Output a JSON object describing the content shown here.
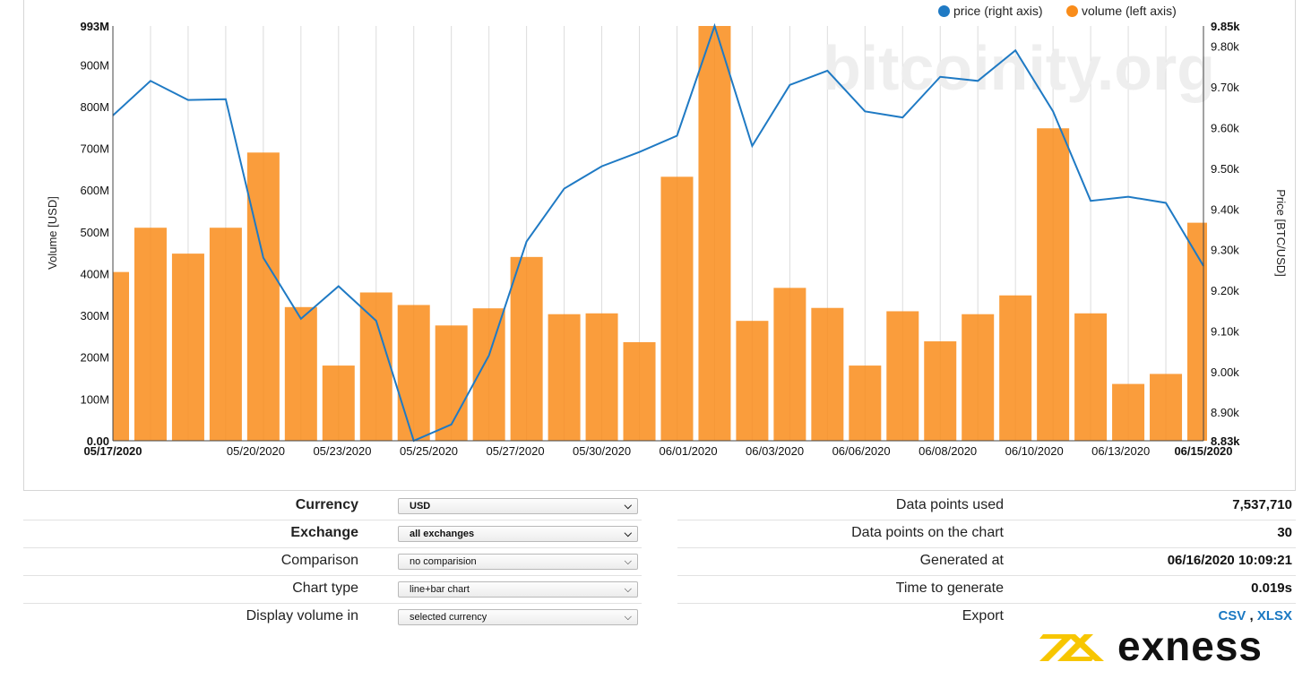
{
  "watermark": "bitcoinity.org",
  "legend": {
    "price": {
      "label": "price (right axis)",
      "color": "#1f7ac4"
    },
    "volume": {
      "label": "volume (left axis)",
      "color": "#f98c1a"
    }
  },
  "chart_data": {
    "type": "line+bar",
    "ylabel_left": "Volume [USD]",
    "ylabel_right": "Price [BTC/USD]",
    "left_ticks": [
      "0.00",
      "100M",
      "200M",
      "300M",
      "400M",
      "500M",
      "600M",
      "700M",
      "800M",
      "900M",
      "993M"
    ],
    "left_tick_values": [
      0,
      100,
      200,
      300,
      400,
      500,
      600,
      700,
      800,
      900,
      993
    ],
    "ylim_left": [
      0,
      993
    ],
    "right_ticks": [
      "8.83k",
      "8.90k",
      "9.00k",
      "9.10k",
      "9.20k",
      "9.30k",
      "9.40k",
      "9.50k",
      "9.60k",
      "9.70k",
      "9.80k",
      "9.85k"
    ],
    "right_tick_values": [
      8.83,
      8.9,
      9.0,
      9.1,
      9.2,
      9.3,
      9.4,
      9.5,
      9.6,
      9.7,
      9.8,
      9.85
    ],
    "ylim_right": [
      8.83,
      9.85
    ],
    "x_ticks": [
      {
        "index": 0,
        "label": "05/17/2020",
        "bold": true
      },
      {
        "index": 3.8,
        "label": "05/20/2020",
        "bold": false
      },
      {
        "index": 6.1,
        "label": "05/23/2020",
        "bold": false
      },
      {
        "index": 8.4,
        "label": "05/25/2020",
        "bold": false
      },
      {
        "index": 10.7,
        "label": "05/27/2020",
        "bold": false
      },
      {
        "index": 13.0,
        "label": "05/30/2020",
        "bold": false
      },
      {
        "index": 15.3,
        "label": "06/01/2020",
        "bold": false
      },
      {
        "index": 17.6,
        "label": "06/03/2020",
        "bold": false
      },
      {
        "index": 19.9,
        "label": "06/06/2020",
        "bold": false
      },
      {
        "index": 22.2,
        "label": "06/08/2020",
        "bold": false
      },
      {
        "index": 24.5,
        "label": "06/10/2020",
        "bold": false
      },
      {
        "index": 26.8,
        "label": "06/13/2020",
        "bold": false
      },
      {
        "index": 29,
        "label": "06/15/2020",
        "bold": true
      }
    ],
    "series": [
      {
        "name": "volume (left axis)",
        "type": "bar",
        "unit": "M USD",
        "values": [
          404,
          510,
          448,
          510,
          690,
          320,
          180,
          355,
          325,
          276,
          317,
          440,
          303,
          305,
          236,
          632,
          993,
          287,
          366,
          318,
          180,
          310,
          238,
          303,
          348,
          748,
          305,
          136,
          160,
          522
        ]
      },
      {
        "name": "price (right axis)",
        "type": "line",
        "unit": "k USD",
        "values": [
          9.63,
          9.715,
          9.668,
          9.67,
          9.28,
          9.13,
          9.21,
          9.125,
          8.83,
          8.87,
          9.04,
          9.32,
          9.45,
          9.505,
          9.54,
          9.58,
          9.85,
          9.555,
          9.705,
          9.74,
          9.64,
          9.625,
          9.725,
          9.715,
          9.79,
          9.64,
          9.42,
          9.43,
          9.415,
          9.26
        ]
      }
    ]
  },
  "settings": [
    {
      "label": "Currency",
      "bold": true,
      "value": "USD",
      "bold_value": true
    },
    {
      "label": "Exchange",
      "bold": true,
      "value": "all exchanges",
      "bold_value": true
    },
    {
      "label": "Comparison",
      "bold": false,
      "value": "no comparision",
      "bold_value": false
    },
    {
      "label": "Chart type",
      "bold": false,
      "value": "line+bar chart",
      "bold_value": false
    },
    {
      "label": "Display volume in",
      "bold": false,
      "value": "selected currency",
      "bold_value": false
    }
  ],
  "info": {
    "data_points_used": {
      "label": "Data points used",
      "value": "7,537,710"
    },
    "data_points_chart": {
      "label": "Data points on the chart",
      "value": "30"
    },
    "generated_at": {
      "label": "Generated at",
      "value": "06/16/2020 10:09:21"
    },
    "time_to_generate": {
      "label": "Time to generate",
      "value": "0.019s"
    },
    "export": {
      "label": "Export",
      "csv": "CSV",
      "sep": ",",
      "xlsx": "XLSX"
    }
  },
  "logo": {
    "text": "exness",
    "colors": {
      "mark": "#f7c600",
      "text": "#111111"
    }
  }
}
